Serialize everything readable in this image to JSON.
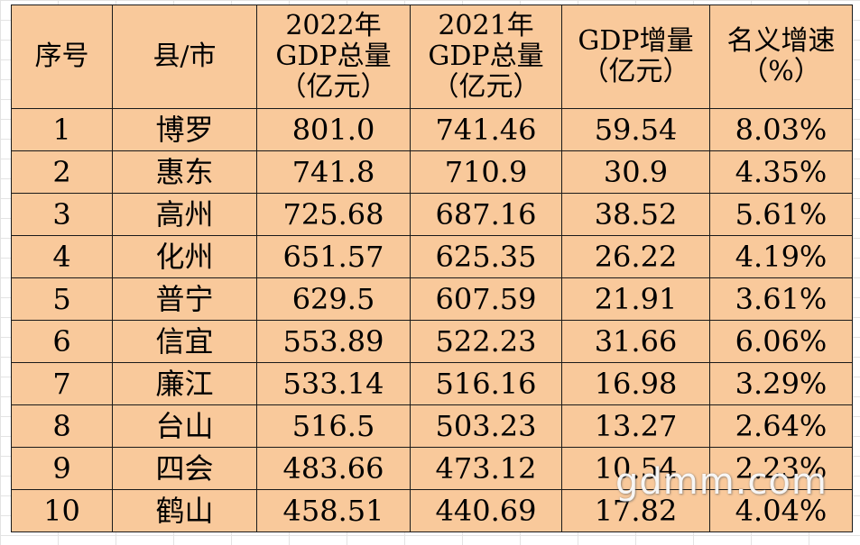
{
  "table": {
    "headers": [
      [
        "序号"
      ],
      [
        "县/市"
      ],
      [
        "2022年",
        "GDP总量",
        "（亿元）"
      ],
      [
        "2021年",
        "GDP总量",
        "（亿元）"
      ],
      [
        "GDP增量",
        "（亿元）"
      ],
      [
        "名义增速",
        "（%）"
      ]
    ],
    "rows": [
      [
        "1",
        "博罗",
        "801.0",
        "741.46",
        "59.54",
        "8.03%"
      ],
      [
        "2",
        "惠东",
        "741.8",
        "710.9",
        "30.9",
        "4.35%"
      ],
      [
        "3",
        "高州",
        "725.68",
        "687.16",
        "38.52",
        "5.61%"
      ],
      [
        "4",
        "化州",
        "651.57",
        "625.35",
        "26.22",
        "4.19%"
      ],
      [
        "5",
        "普宁",
        "629.5",
        "607.59",
        "21.91",
        "3.61%"
      ],
      [
        "6",
        "信宜",
        "553.89",
        "522.23",
        "31.66",
        "6.06%"
      ],
      [
        "7",
        "廉江",
        "533.14",
        "516.16",
        "16.98",
        "3.29%"
      ],
      [
        "8",
        "台山",
        "516.5",
        "503.23",
        "13.27",
        "2.64%"
      ],
      [
        "9",
        "四会",
        "483.66",
        "473.12",
        "10.54",
        "2.23%"
      ],
      [
        "10",
        "鹤山",
        "458.51",
        "440.69",
        "17.82",
        "4.04%"
      ]
    ]
  },
  "watermark": "gdmm.com",
  "colors": {
    "table_fill": "#f9c99b",
    "border": "#1a1a1a"
  }
}
